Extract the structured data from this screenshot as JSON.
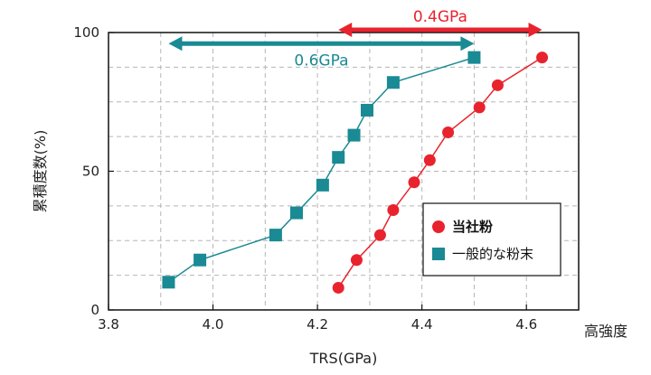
{
  "chart_data": {
    "type": "scatter",
    "xlabel": "TRS(GPa)",
    "ylabel": "累積度数(%)",
    "x_extra_label": "高強度",
    "xlim": [
      3.8,
      4.7
    ],
    "ylim": [
      0,
      100
    ],
    "x_ticks": [
      "3.8",
      "4.0",
      "4.2",
      "4.4",
      "4.6"
    ],
    "x_tick_values": [
      3.8,
      4.0,
      4.2,
      4.4,
      4.6
    ],
    "y_ticks": [
      "0",
      "50",
      "100"
    ],
    "y_tick_values": [
      0,
      50,
      100
    ],
    "grid": true,
    "legend_position": "bottom-right",
    "series": [
      {
        "name": "当社粉",
        "marker": "circle",
        "color": "#e8232e",
        "x": [
          4.24,
          4.275,
          4.32,
          4.345,
          4.385,
          4.415,
          4.45,
          4.51,
          4.545,
          4.63
        ],
        "y": [
          8,
          18,
          27,
          36,
          46,
          54,
          64,
          73,
          81,
          91
        ]
      },
      {
        "name": "一般的な粉末",
        "marker": "square",
        "color": "#1a8a94",
        "x": [
          3.915,
          3.975,
          4.12,
          4.16,
          4.21,
          4.24,
          4.27,
          4.295,
          4.345,
          4.5
        ],
        "y": [
          10,
          18,
          27,
          35,
          45,
          55,
          63,
          72,
          82,
          91
        ]
      }
    ],
    "annotations": [
      {
        "text": "0.4GPa",
        "x_from": 4.24,
        "x_to": 4.63,
        "y_value": 100,
        "color": "#e8232e"
      },
      {
        "text": "0.6GPa",
        "x_from": 3.915,
        "x_to": 4.5,
        "y_value": 96,
        "color": "#1a8a94"
      }
    ]
  }
}
